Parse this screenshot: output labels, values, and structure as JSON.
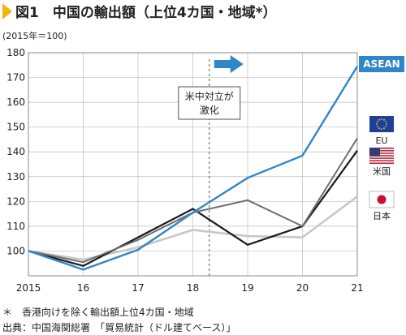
{
  "chart_data": {
    "type": "line",
    "title": "図1　中国の輸出額（上位4カ国・地域*）",
    "ylabel": "(2015年＝100)",
    "xlabel": "",
    "x": [
      "2015",
      "16",
      "17",
      "18",
      "19",
      "20",
      "21"
    ],
    "ylim": [
      90,
      180
    ],
    "yticks": [
      100,
      110,
      120,
      130,
      140,
      150,
      160,
      170,
      180
    ],
    "grid": true,
    "annotation": "米中対立が激化",
    "annotation_lines": [
      "米中対立が",
      "激化"
    ],
    "event_after_x": "18",
    "series": [
      {
        "name": "ASEAN",
        "color": "#2f86c8",
        "values": [
          100,
          92.5,
          100.5,
          115.5,
          129.5,
          138.5,
          174.5
        ]
      },
      {
        "name": "EU",
        "color": "#6e6e6e",
        "values": [
          100,
          95.5,
          104.5,
          115.5,
          120.5,
          110,
          145.5
        ]
      },
      {
        "name": "米国",
        "color": "#1a1a1a",
        "values": [
          100,
          94,
          105.5,
          117,
          102.5,
          110,
          140.5
        ]
      },
      {
        "name": "日本",
        "color": "#c8c8c8",
        "values": [
          100,
          96.5,
          101.5,
          108.5,
          106,
          105.5,
          122
        ]
      }
    ]
  },
  "legend_icons": {
    "EU": "eu-flag-icon",
    "米国": "us-flag-icon",
    "日本": "japan-flag-icon"
  },
  "footnote": "＊　香港向けを除く輸出額上位4カ国・地域",
  "source": "出典：中国海関総署　「貿易統計（ドル建てベース）」"
}
